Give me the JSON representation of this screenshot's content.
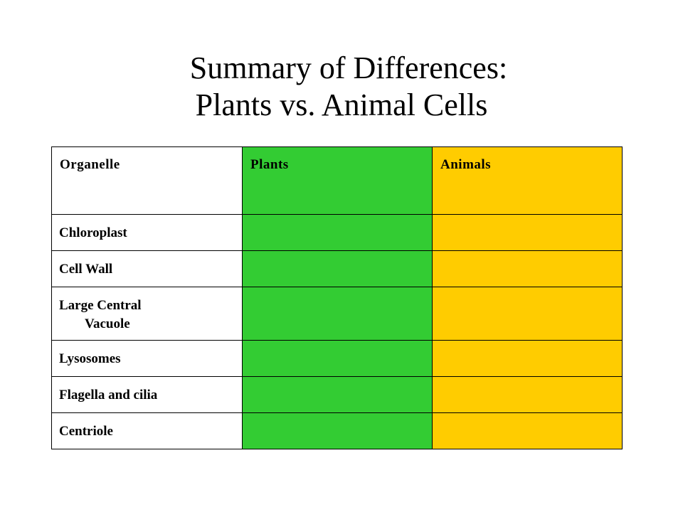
{
  "title": {
    "line1": "Summary of Differences:",
    "line2": "Plants vs. Animal Cells"
  },
  "table": {
    "headers": [
      "Organelle",
      "Plants",
      "Animals"
    ],
    "rows": [
      {
        "organelle": "Chloroplast",
        "plants": "",
        "animals": ""
      },
      {
        "organelle": "Cell Wall",
        "plants": "",
        "animals": ""
      },
      {
        "organelle_line1": "Large Central",
        "organelle_line2": "Vacuole",
        "plants": "",
        "animals": ""
      },
      {
        "organelle": "Lysosomes",
        "plants": "",
        "animals": ""
      },
      {
        "organelle": "Flagella and cilia",
        "plants": "",
        "animals": ""
      },
      {
        "organelle": "Centriole",
        "plants": "",
        "animals": ""
      }
    ]
  },
  "colors": {
    "plants_column": "#33cc33",
    "animals_column": "#ffcc00"
  }
}
